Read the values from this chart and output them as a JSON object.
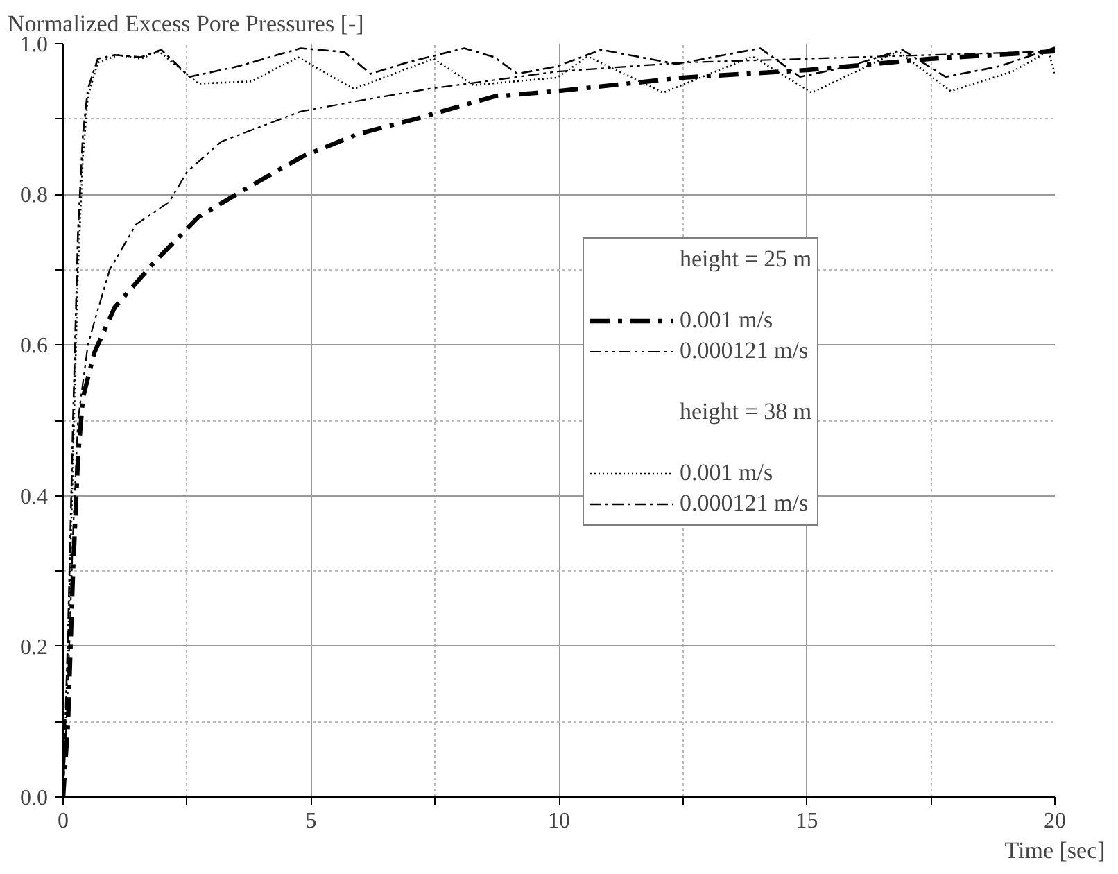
{
  "chart_data": {
    "type": "line",
    "ylabel": "Normalized Excess Pore Pressures [-]",
    "xlabel": "Time [sec]",
    "xlim": [
      0,
      20
    ],
    "ylim": [
      0,
      1
    ],
    "xticks": [
      0,
      5,
      10,
      15,
      20,
      {
        "value": 2.5,
        "label": null
      },
      {
        "value": 7.5,
        "label": null
      },
      {
        "value": 12.5,
        "label": null
      },
      {
        "value": 17.5,
        "label": null
      }
    ],
    "yticks": [
      {
        "value": 0,
        "label": "0.0"
      },
      0.2,
      0.4,
      0.6,
      0.8,
      {
        "value": 1,
        "label": "1.0"
      },
      {
        "value": 0.1,
        "label": null
      },
      {
        "value": 0.3,
        "label": null
      },
      {
        "value": 0.5,
        "label": null
      },
      {
        "value": 0.7,
        "label": null
      },
      {
        "value": 0.9,
        "label": null
      }
    ],
    "grid": true,
    "legend": "center",
    "annotations": [
      "height = 25 m",
      "height = 38 m"
    ],
    "series": [
      {
        "name": "0.001 m/s",
        "color": "#000000",
        "line_style": "dashdot_heavy",
        "x": [
          0,
          0.1,
          0.2,
          0.3,
          0.4,
          0.63,
          1.04,
          1.84,
          2.73,
          3.75,
          4.82,
          5.94,
          7.1,
          8.7,
          9.96,
          12.5,
          15,
          17.5,
          20
        ],
        "values": [
          0,
          0.1,
          0.3,
          0.45,
          0.53,
          0.59,
          0.65,
          0.71,
          0.77,
          0.81,
          0.85,
          0.88,
          0.9,
          0.93,
          0.937,
          0.955,
          0.965,
          0.98,
          0.99
        ]
      },
      {
        "name": "0.000121 m/s",
        "color": "#000000",
        "line_style": "dashdotdot",
        "x": [
          0,
          0.1,
          0.2,
          0.3,
          0.5,
          0.67,
          0.94,
          1.47,
          2.14,
          2.5,
          3.19,
          3.99,
          4.79,
          6.03,
          7.37,
          9.96,
          12.5,
          15,
          17.5,
          20
        ],
        "values": [
          0,
          0.15,
          0.35,
          0.5,
          0.6,
          0.64,
          0.7,
          0.76,
          0.79,
          0.83,
          0.87,
          0.89,
          0.91,
          0.925,
          0.94,
          0.963,
          0.975,
          0.98,
          0.985,
          0.99
        ]
      },
      {
        "name": "0.001 m/s",
        "color": "#000000",
        "line_style": "dotted",
        "x": [
          0,
          0.1,
          0.2,
          0.3,
          0.4,
          0.5,
          0.7,
          1.12,
          1.57,
          1.93,
          2.73,
          3.8,
          4.74,
          5.86,
          7.47,
          8.27,
          9.96,
          10.58,
          12.1,
          13.9,
          15.1,
          16.84,
          17.9,
          19.14,
          19.87,
          20
        ],
        "values": [
          0,
          0.2,
          0.45,
          0.7,
          0.85,
          0.93,
          0.975,
          0.985,
          0.98,
          0.99,
          0.947,
          0.95,
          0.982,
          0.94,
          0.98,
          0.945,
          0.955,
          0.983,
          0.935,
          0.983,
          0.935,
          0.99,
          0.937,
          0.963,
          0.99,
          0.96
        ]
      },
      {
        "name": "0.000121 m/s",
        "color": "#000000",
        "line_style": "dashdot",
        "x": [
          0,
          0.1,
          0.2,
          0.3,
          0.4,
          0.5,
          0.7,
          1.04,
          1.57,
          1.98,
          2.55,
          3.53,
          4.79,
          5.67,
          6.2,
          6.93,
          8.09,
          8.7,
          9.16,
          9.96,
          10.85,
          12.37,
          14.06,
          14.86,
          15.85,
          16.92,
          17.8,
          18.88,
          19.87,
          20
        ],
        "values": [
          0,
          0.22,
          0.5,
          0.75,
          0.88,
          0.94,
          0.98,
          0.985,
          0.982,
          0.992,
          0.956,
          0.97,
          0.994,
          0.989,
          0.96,
          0.975,
          0.994,
          0.982,
          0.96,
          0.97,
          0.992,
          0.973,
          0.994,
          0.956,
          0.97,
          0.992,
          0.956,
          0.97,
          0.992,
          0.995
        ]
      }
    ]
  }
}
